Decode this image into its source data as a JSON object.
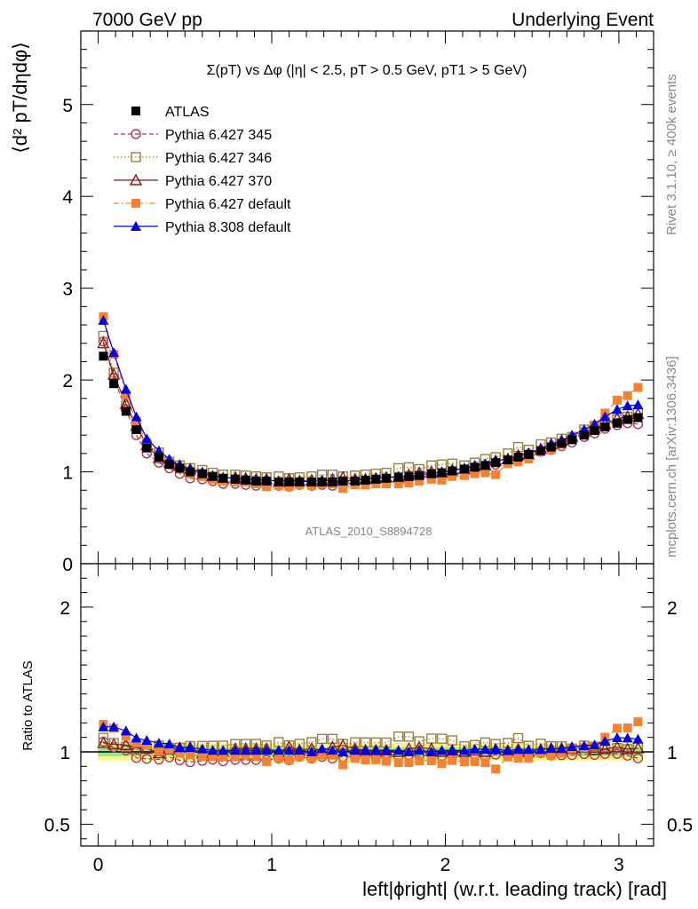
{
  "header": {
    "left": "7000 GeV pp",
    "right": "Underlying Event"
  },
  "side_labels": {
    "rivet": "Rivet 3.1.10, ≥ 400k events",
    "mcplots": "mcplots.cern.ch [arXiv:1306.3436]"
  },
  "watermark": "ATLAS_2010_S8894728",
  "colors": {
    "atlas": "#000000",
    "p345": "#b8354a",
    "p346": "#9c8040",
    "p370": "#8b1a1a",
    "p6def": "#f58232",
    "p8def": "#0000e6",
    "band_inner": "#8fe88f",
    "band_outer": "#f5f58c"
  },
  "chart_data": [
    {
      "type": "scatter",
      "panel": "main",
      "title": "Σ(pT) vs Δφ (|η| < 2.5, pT > 0.5 GeV, pT1 > 5 GeV)",
      "ylabel": "⟨d² pT/dηdφ⟩",
      "xlabel": "",
      "xlim": [
        -0.1,
        3.2
      ],
      "ylim": [
        0,
        5.8
      ],
      "yticks": [
        0,
        1,
        2,
        3,
        4,
        5
      ],
      "grid": false,
      "legend_position": "top-left",
      "x": [
        0.03,
        0.09,
        0.16,
        0.22,
        0.28,
        0.35,
        0.41,
        0.47,
        0.53,
        0.6,
        0.66,
        0.72,
        0.79,
        0.85,
        0.91,
        0.97,
        1.04,
        1.1,
        1.16,
        1.23,
        1.29,
        1.35,
        1.41,
        1.48,
        1.54,
        1.6,
        1.66,
        1.73,
        1.79,
        1.85,
        1.92,
        1.98,
        2.04,
        2.11,
        2.17,
        2.23,
        2.29,
        2.36,
        2.42,
        2.48,
        2.55,
        2.61,
        2.67,
        2.73,
        2.8,
        2.86,
        2.92,
        2.99,
        3.05,
        3.11
      ],
      "series": [
        {
          "name": "ATLAS",
          "marker": "filled-square",
          "color_key": "atlas",
          "values": [
            2.26,
            1.96,
            1.66,
            1.46,
            1.26,
            1.16,
            1.08,
            1.04,
            1.0,
            0.98,
            0.95,
            0.93,
            0.92,
            0.91,
            0.9,
            0.9,
            0.89,
            0.89,
            0.89,
            0.89,
            0.89,
            0.89,
            0.9,
            0.9,
            0.91,
            0.92,
            0.93,
            0.94,
            0.95,
            0.96,
            0.98,
            0.99,
            1.01,
            1.03,
            1.05,
            1.07,
            1.1,
            1.13,
            1.16,
            1.19,
            1.23,
            1.27,
            1.31,
            1.35,
            1.4,
            1.45,
            1.49,
            1.53,
            1.57,
            1.59
          ]
        },
        {
          "name": "Pythia 6.427 345",
          "marker": "open-circle",
          "line": "dashed",
          "color_key": "p345",
          "values": [
            2.42,
            2.02,
            1.68,
            1.4,
            1.2,
            1.1,
            1.04,
            0.98,
            0.93,
            0.92,
            0.9,
            0.87,
            0.87,
            0.86,
            0.85,
            0.85,
            0.85,
            0.84,
            0.86,
            0.85,
            0.86,
            0.85,
            0.87,
            0.87,
            0.89,
            0.89,
            0.9,
            0.91,
            0.93,
            0.93,
            0.96,
            0.96,
            0.98,
            1.0,
            1.03,
            1.03,
            1.08,
            1.1,
            1.14,
            1.16,
            1.22,
            1.24,
            1.28,
            1.32,
            1.38,
            1.42,
            1.47,
            1.51,
            1.53,
            1.52
          ]
        },
        {
          "name": "Pythia 6.427 346",
          "marker": "open-square",
          "line": "dotted",
          "color_key": "p346",
          "values": [
            2.48,
            2.08,
            1.72,
            1.48,
            1.29,
            1.21,
            1.11,
            1.07,
            1.04,
            1.02,
            0.99,
            0.97,
            0.97,
            0.96,
            0.95,
            0.94,
            0.95,
            0.93,
            0.94,
            0.95,
            0.97,
            0.97,
            0.95,
            0.96,
            0.97,
            0.98,
            0.99,
            1.04,
            1.05,
            1.03,
            1.07,
            1.08,
            1.09,
            1.07,
            1.1,
            1.14,
            1.16,
            1.2,
            1.27,
            1.24,
            1.3,
            1.32,
            1.36,
            1.38,
            1.46,
            1.5,
            1.54,
            1.57,
            1.6,
            1.64
          ]
        },
        {
          "name": "Pythia 6.427 370",
          "marker": "open-triangle",
          "line": "solid",
          "color_key": "p370",
          "values": [
            2.4,
            2.06,
            1.74,
            1.5,
            1.29,
            1.15,
            1.1,
            1.07,
            1.03,
            0.97,
            0.95,
            0.93,
            0.94,
            0.93,
            0.92,
            0.92,
            0.89,
            0.92,
            0.9,
            0.91,
            0.9,
            0.92,
            0.94,
            0.92,
            0.92,
            0.93,
            0.94,
            0.94,
            0.97,
            0.99,
            1.0,
            0.99,
            1.02,
            1.03,
            1.06,
            1.07,
            1.12,
            1.14,
            1.18,
            1.19,
            1.25,
            1.3,
            1.34,
            1.38,
            1.44,
            1.47,
            1.52,
            1.58,
            1.6,
            1.63
          ]
        },
        {
          "name": "Pythia 6.427 default",
          "marker": "filled-square",
          "line": "dashdot",
          "color_key": "p6def",
          "values": [
            2.69,
            2.28,
            1.84,
            1.55,
            1.32,
            1.17,
            1.1,
            1.03,
            0.98,
            0.95,
            0.92,
            0.9,
            0.89,
            0.89,
            0.87,
            0.84,
            0.85,
            0.84,
            0.86,
            0.85,
            0.87,
            0.87,
            0.82,
            0.86,
            0.86,
            0.87,
            0.87,
            0.87,
            0.88,
            0.9,
            0.92,
            0.91,
            0.95,
            0.96,
            0.98,
            0.99,
            0.97,
            1.09,
            1.11,
            1.14,
            1.22,
            1.24,
            1.3,
            1.38,
            1.44,
            1.51,
            1.64,
            1.78,
            1.83,
            1.92
          ]
        },
        {
          "name": "Pythia 8.308 default",
          "marker": "filled-triangle",
          "line": "solid",
          "color_key": "p8def",
          "values": [
            2.65,
            2.3,
            1.9,
            1.6,
            1.36,
            1.23,
            1.14,
            1.07,
            1.03,
            1.0,
            0.96,
            0.94,
            0.93,
            0.92,
            0.91,
            0.91,
            0.9,
            0.9,
            0.9,
            0.89,
            0.91,
            0.9,
            0.9,
            0.91,
            0.92,
            0.93,
            0.94,
            0.95,
            0.95,
            0.97,
            0.98,
            1.0,
            1.02,
            1.04,
            1.07,
            1.09,
            1.12,
            1.14,
            1.18,
            1.21,
            1.25,
            1.3,
            1.34,
            1.4,
            1.46,
            1.52,
            1.6,
            1.68,
            1.72,
            1.73
          ]
        }
      ]
    },
    {
      "type": "scatter",
      "panel": "ratio",
      "ylabel": "Ratio to ATLAS",
      "xlabel": "left|ϕright| (w.r.t. leading track) [rad]",
      "xlim": [
        -0.1,
        3.2
      ],
      "ylim": [
        0.35,
        2.3
      ],
      "yticks": [
        0.5,
        1,
        2
      ],
      "ytick_labels": [
        "0.5",
        "1",
        "2"
      ],
      "xticks": [
        0,
        1,
        2,
        3
      ],
      "xtick_labels": [
        "0",
        "1",
        "2",
        "3"
      ],
      "reference_line": 1.0,
      "band_inner": [
        0.97,
        1.03
      ],
      "band_outer": [
        0.94,
        1.06
      ]
    }
  ]
}
